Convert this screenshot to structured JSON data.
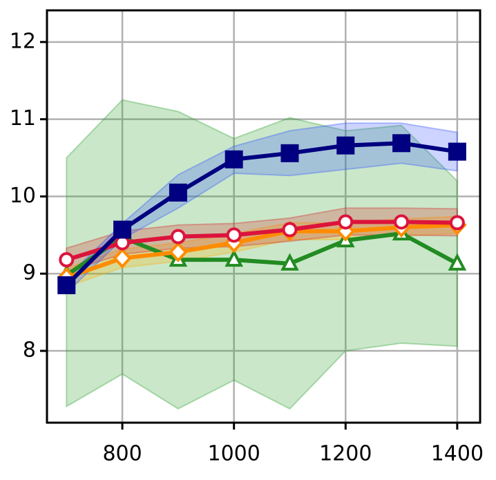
{
  "chart_data": {
    "type": "line",
    "x": [
      700,
      800,
      900,
      1000,
      1100,
      1200,
      1300,
      1400
    ],
    "xlim": [
      665,
      1441
    ],
    "xticks": [
      800,
      1000,
      1200,
      1400
    ],
    "ylim": [
      7.07,
      12.41
    ],
    "yticks": [
      8,
      9,
      10,
      11,
      12
    ],
    "grid": true,
    "series": [
      {
        "color": "#228b22",
        "band_color": "#2ca02c",
        "marker": "triangle",
        "values": [
          8.98,
          9.47,
          9.18,
          9.18,
          9.13,
          9.43,
          9.52,
          9.13
        ],
        "upper": [
          10.5,
          11.25,
          11.1,
          10.75,
          11.02,
          10.85,
          10.92,
          10.2
        ],
        "lower": [
          7.28,
          7.7,
          7.25,
          7.62,
          7.25,
          8.0,
          8.1,
          8.06
        ]
      },
      {
        "color": "#ff8c00",
        "band_color": "#ffb000",
        "marker": "diamond",
        "values": [
          8.95,
          9.2,
          9.28,
          9.4,
          9.55,
          9.55,
          9.6,
          9.63
        ],
        "upper": [
          9.07,
          9.32,
          9.4,
          9.52,
          9.66,
          9.66,
          9.71,
          9.74
        ],
        "lower": [
          8.83,
          9.08,
          9.16,
          9.28,
          9.44,
          9.44,
          9.49,
          9.52
        ]
      },
      {
        "color": "#dc143c",
        "band_color": "#d62728",
        "marker": "circle",
        "values": [
          9.18,
          9.4,
          9.48,
          9.5,
          9.57,
          9.67,
          9.67,
          9.66
        ],
        "upper": [
          9.33,
          9.55,
          9.63,
          9.65,
          9.72,
          9.85,
          9.85,
          9.84
        ],
        "lower": [
          9.03,
          9.25,
          9.33,
          9.35,
          9.42,
          9.5,
          9.5,
          9.49
        ]
      },
      {
        "color": "#000080",
        "band_color": "#3355ff",
        "marker": "square",
        "values": [
          8.85,
          9.57,
          10.05,
          10.48,
          10.56,
          10.66,
          10.69,
          10.58
        ],
        "upper": [
          8.95,
          9.65,
          10.28,
          10.65,
          10.85,
          10.95,
          10.95,
          10.83
        ],
        "lower": [
          8.75,
          9.45,
          9.85,
          10.3,
          10.27,
          10.35,
          10.43,
          10.33
        ]
      }
    ]
  }
}
